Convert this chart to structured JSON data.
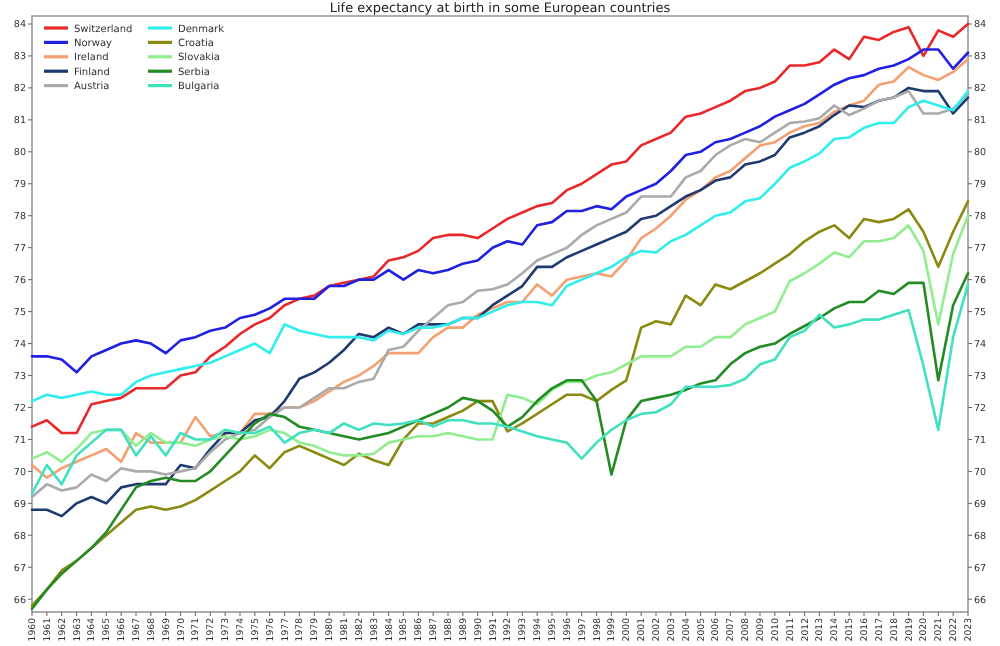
{
  "chart_data": {
    "type": "line",
    "title": "Life expectancy at birth in some European countries",
    "x": [
      1960,
      1961,
      1962,
      1963,
      1964,
      1965,
      1966,
      1967,
      1968,
      1969,
      1970,
      1971,
      1972,
      1973,
      1974,
      1975,
      1976,
      1977,
      1978,
      1979,
      1980,
      1981,
      1982,
      1983,
      1984,
      1985,
      1986,
      1987,
      1988,
      1989,
      1990,
      1991,
      1992,
      1993,
      1994,
      1995,
      1996,
      1997,
      1998,
      1999,
      2000,
      2001,
      2002,
      2003,
      2004,
      2005,
      2006,
      2007,
      2008,
      2009,
      2010,
      2011,
      2012,
      2013,
      2014,
      2015,
      2016,
      2017,
      2018,
      2019,
      2020,
      2021,
      2022,
      2023
    ],
    "xlim": [
      1960,
      2023
    ],
    "xticks": [
      1960,
      1961,
      1962,
      1963,
      1964,
      1965,
      1966,
      1967,
      1968,
      1969,
      1970,
      1971,
      1972,
      1973,
      1974,
      1975,
      1976,
      1977,
      1978,
      1979,
      1980,
      1981,
      1982,
      1983,
      1984,
      1985,
      1986,
      1987,
      1988,
      1989,
      1990,
      1991,
      1992,
      1993,
      1994,
      1995,
      1996,
      1997,
      1998,
      1999,
      2000,
      2001,
      2002,
      2003,
      2004,
      2005,
      2006,
      2007,
      2008,
      2009,
      2010,
      2011,
      2012,
      2013,
      2014,
      2015,
      2016,
      2017,
      2018,
      2019,
      2020,
      2021,
      2022,
      2023
    ],
    "ylim": [
      65.6,
      84.25
    ],
    "yticks": [
      66,
      67,
      68,
      69,
      70,
      71,
      72,
      73,
      74,
      75,
      76,
      77,
      78,
      79,
      80,
      81,
      82,
      83,
      84
    ],
    "y2lim": [
      65.6,
      84.25
    ],
    "y2ticks": [
      66,
      67,
      68,
      69,
      70,
      71,
      72,
      73,
      74,
      75,
      76,
      77,
      78,
      79,
      80,
      81,
      82,
      83,
      84
    ],
    "legend": "top left",
    "marker": "none",
    "line_style": "solid",
    "series": [
      {
        "name": "Switzerland",
        "color": "#e8282b",
        "values": [
          71.4,
          71.6,
          71.2,
          71.2,
          72.1,
          72.2,
          72.3,
          72.6,
          72.6,
          72.6,
          73.0,
          73.1,
          73.6,
          73.9,
          74.3,
          74.6,
          74.8,
          75.2,
          75.4,
          75.5,
          75.8,
          75.9,
          76.0,
          76.1,
          76.6,
          76.7,
          76.9,
          77.3,
          77.4,
          77.4,
          77.3,
          77.6,
          77.9,
          78.1,
          78.3,
          78.4,
          78.8,
          79.0,
          79.3,
          79.6,
          79.7,
          80.2,
          80.4,
          80.6,
          81.1,
          81.2,
          81.4,
          81.6,
          81.9,
          82.0,
          82.2,
          82.7,
          82.7,
          82.8,
          83.2,
          82.9,
          83.6,
          83.5,
          83.75,
          83.9,
          83.0,
          83.8,
          83.6,
          84.0
        ]
      },
      {
        "name": "Norway",
        "color": "#2020e0",
        "values": [
          73.6,
          73.6,
          73.5,
          73.1,
          73.6,
          73.8,
          74.0,
          74.1,
          74.0,
          73.7,
          74.1,
          74.2,
          74.4,
          74.5,
          74.8,
          74.9,
          75.1,
          75.4,
          75.4,
          75.4,
          75.8,
          75.8,
          76.0,
          76.0,
          76.3,
          76.0,
          76.3,
          76.2,
          76.3,
          76.5,
          76.6,
          77.0,
          77.2,
          77.1,
          77.7,
          77.8,
          78.15,
          78.15,
          78.3,
          78.2,
          78.6,
          78.8,
          79.0,
          79.4,
          79.9,
          80.0,
          80.3,
          80.4,
          80.6,
          80.8,
          81.1,
          81.3,
          81.5,
          81.8,
          82.1,
          82.3,
          82.4,
          82.6,
          82.7,
          82.9,
          83.2,
          83.2,
          82.6,
          83.1
        ]
      },
      {
        "name": "Ireland",
        "color": "#f4a070",
        "values": [
          70.2,
          69.8,
          70.1,
          70.3,
          70.5,
          70.7,
          70.3,
          71.2,
          70.9,
          70.9,
          70.9,
          71.7,
          71.1,
          71.2,
          71.2,
          71.8,
          71.8,
          72.0,
          72.0,
          72.2,
          72.5,
          72.8,
          73.0,
          73.3,
          73.7,
          73.7,
          73.7,
          74.2,
          74.5,
          74.5,
          74.9,
          75.1,
          75.3,
          75.3,
          75.85,
          75.5,
          76.0,
          76.1,
          76.2,
          76.1,
          76.6,
          77.3,
          77.6,
          78.0,
          78.5,
          78.8,
          79.2,
          79.4,
          79.8,
          80.2,
          80.3,
          80.6,
          80.8,
          80.9,
          81.25,
          81.45,
          81.6,
          82.1,
          82.2,
          82.65,
          82.4,
          82.25,
          82.5,
          82.9
        ]
      },
      {
        "name": "Finland",
        "color": "#1f3a6e",
        "values": [
          68.8,
          68.8,
          68.6,
          69.0,
          69.2,
          69.0,
          69.5,
          69.6,
          69.6,
          69.6,
          70.2,
          70.1,
          70.7,
          71.2,
          71.2,
          71.6,
          71.7,
          72.2,
          72.9,
          73.1,
          73.4,
          73.8,
          74.3,
          74.2,
          74.5,
          74.3,
          74.6,
          74.6,
          74.6,
          74.8,
          74.8,
          75.2,
          75.5,
          75.8,
          76.4,
          76.4,
          76.7,
          76.9,
          77.1,
          77.3,
          77.5,
          77.9,
          78.0,
          78.3,
          78.6,
          78.8,
          79.1,
          79.2,
          79.6,
          79.7,
          79.9,
          80.45,
          80.6,
          80.8,
          81.15,
          81.45,
          81.4,
          81.6,
          81.7,
          82.0,
          81.9,
          81.9,
          81.2,
          81.7
        ]
      },
      {
        "name": "Austria",
        "color": "#aaaaaa",
        "values": [
          69.2,
          69.6,
          69.4,
          69.5,
          69.9,
          69.7,
          70.1,
          70.0,
          70.0,
          69.9,
          70.0,
          70.1,
          70.6,
          71.0,
          71.2,
          71.3,
          71.7,
          72.0,
          72.0,
          72.3,
          72.6,
          72.6,
          72.8,
          72.9,
          73.8,
          73.9,
          74.4,
          74.8,
          75.2,
          75.3,
          75.65,
          75.7,
          75.85,
          76.2,
          76.6,
          76.8,
          77.0,
          77.4,
          77.7,
          77.9,
          78.1,
          78.6,
          78.6,
          78.6,
          79.2,
          79.4,
          79.9,
          80.2,
          80.4,
          80.3,
          80.6,
          80.9,
          80.95,
          81.05,
          81.45,
          81.15,
          81.35,
          81.6,
          81.7,
          81.9,
          81.2,
          81.2,
          81.35,
          81.8
        ]
      },
      {
        "name": "Denmark",
        "color": "#30eeee",
        "values": [
          72.2,
          72.4,
          72.3,
          72.4,
          72.5,
          72.4,
          72.4,
          72.8,
          73.0,
          73.1,
          73.2,
          73.3,
          73.4,
          73.6,
          73.8,
          74.0,
          73.7,
          74.6,
          74.4,
          74.3,
          74.2,
          74.2,
          74.2,
          74.1,
          74.4,
          74.3,
          74.5,
          74.5,
          74.6,
          74.8,
          74.8,
          75.0,
          75.2,
          75.3,
          75.3,
          75.2,
          75.8,
          76.0,
          76.2,
          76.4,
          76.7,
          76.9,
          76.85,
          77.2,
          77.4,
          77.7,
          78.0,
          78.1,
          78.45,
          78.55,
          79.0,
          79.5,
          79.7,
          79.95,
          80.4,
          80.45,
          80.75,
          80.9,
          80.9,
          81.4,
          81.6,
          81.45,
          81.3,
          81.9
        ]
      },
      {
        "name": "Croatia",
        "color": "#8a8a10",
        "values": [
          65.8,
          66.3,
          66.9,
          67.2,
          67.6,
          68.0,
          68.4,
          68.8,
          68.9,
          68.8,
          68.9,
          69.1,
          69.4,
          69.7,
          70.0,
          70.5,
          70.1,
          70.6,
          70.8,
          70.6,
          70.4,
          70.2,
          70.55,
          70.35,
          70.2,
          71.0,
          71.5,
          71.5,
          71.7,
          71.9,
          72.2,
          72.2,
          71.25,
          71.5,
          71.8,
          72.1,
          72.4,
          72.4,
          72.2,
          72.55,
          72.85,
          74.5,
          74.7,
          74.6,
          75.5,
          75.2,
          75.85,
          75.7,
          75.95,
          76.2,
          76.5,
          76.8,
          77.2,
          77.5,
          77.7,
          77.3,
          77.9,
          77.8,
          77.9,
          78.2,
          77.5,
          76.4,
          77.5,
          78.45
        ]
      },
      {
        "name": "Slovakia",
        "color": "#90ee90",
        "values": [
          70.4,
          70.6,
          70.3,
          70.7,
          71.2,
          71.3,
          71.3,
          70.8,
          71.2,
          70.9,
          70.9,
          70.8,
          71.0,
          71.1,
          71.0,
          71.1,
          71.3,
          71.2,
          70.9,
          70.8,
          70.6,
          70.5,
          70.5,
          70.55,
          70.9,
          71.0,
          71.1,
          71.1,
          71.2,
          71.1,
          71.0,
          71.0,
          72.4,
          72.3,
          72.1,
          72.55,
          72.8,
          72.8,
          73.0,
          73.1,
          73.35,
          73.6,
          73.6,
          73.6,
          73.9,
          73.9,
          74.2,
          74.2,
          74.6,
          74.8,
          75.0,
          75.95,
          76.2,
          76.5,
          76.85,
          76.7,
          77.2,
          77.2,
          77.3,
          77.7,
          76.9,
          74.6,
          76.8,
          78.0
        ]
      },
      {
        "name": "Serbia",
        "color": "#228b22",
        "values": [
          65.7,
          66.3,
          66.8,
          67.2,
          67.6,
          68.1,
          68.8,
          69.5,
          69.7,
          69.8,
          69.7,
          69.7,
          70.0,
          70.5,
          71.0,
          71.5,
          71.8,
          71.7,
          71.4,
          71.3,
          71.2,
          71.1,
          71.0,
          71.1,
          71.2,
          71.4,
          71.6,
          71.8,
          72.0,
          72.3,
          72.2,
          71.9,
          71.4,
          71.7,
          72.2,
          72.6,
          72.85,
          72.85,
          72.2,
          69.9,
          71.6,
          72.2,
          72.3,
          72.4,
          72.55,
          72.75,
          72.85,
          73.35,
          73.7,
          73.9,
          74.0,
          74.3,
          74.55,
          74.8,
          75.1,
          75.3,
          75.3,
          75.65,
          75.55,
          75.9,
          75.9,
          72.85,
          75.2,
          76.2
        ]
      },
      {
        "name": "Bulgaria",
        "color": "#40e0c0",
        "values": [
          69.3,
          70.2,
          69.6,
          70.5,
          70.9,
          71.3,
          71.3,
          70.5,
          71.1,
          70.5,
          71.2,
          71.0,
          71.0,
          71.3,
          71.2,
          71.2,
          71.4,
          70.9,
          71.2,
          71.3,
          71.2,
          71.5,
          71.3,
          71.5,
          71.45,
          71.5,
          71.6,
          71.4,
          71.6,
          71.6,
          71.5,
          71.5,
          71.4,
          71.25,
          71.1,
          71.0,
          70.9,
          70.4,
          70.9,
          71.3,
          71.6,
          71.8,
          71.85,
          72.1,
          72.65,
          72.65,
          72.65,
          72.7,
          72.9,
          73.35,
          73.5,
          74.2,
          74.4,
          74.9,
          74.5,
          74.6,
          74.75,
          74.75,
          74.9,
          75.05,
          73.3,
          71.3,
          74.2,
          75.85
        ]
      }
    ]
  }
}
